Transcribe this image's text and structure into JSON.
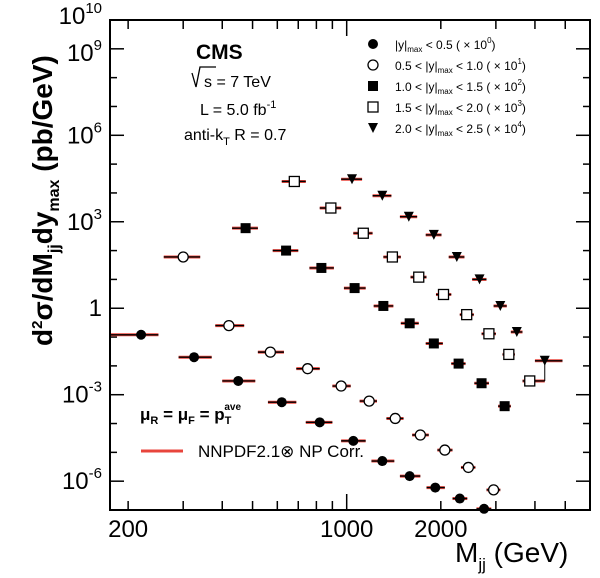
{
  "chart_data": {
    "type": "scatter",
    "title": "",
    "xlabel": "M_jj (GeV)",
    "ylabel": "d²σ/dM_jj dy_max (pb/GeV)",
    "xscale": "log",
    "yscale": "log",
    "xlim": [
      175,
      6000
    ],
    "ylim": [
      1e-07,
      10000000000.0
    ],
    "x_tick_labels": [
      {
        "value": 200,
        "label": "200"
      },
      {
        "value": 1000,
        "label": "1000"
      },
      {
        "value": 2000,
        "label": "2000"
      }
    ],
    "y_tick_labels": [
      {
        "value": 1e-06,
        "base": "10",
        "exp": "-6"
      },
      {
        "value": 0.001,
        "base": "10",
        "exp": "-3"
      },
      {
        "value": 1,
        "base": "1",
        "exp": ""
      },
      {
        "value": 1000.0,
        "base": "10",
        "exp": "3"
      },
      {
        "value": 1000000.0,
        "base": "10",
        "exp": "6"
      },
      {
        "value": 1000000000.0,
        "base": "10",
        "exp": "9"
      },
      {
        "value": 10000000000.0,
        "base": "10",
        "exp": "10"
      }
    ],
    "legend_placement": "top-right",
    "experiment_label": "CMS",
    "info_lines": {
      "energy_prefix": "s",
      "energy": " = 7 TeV",
      "lumi": "L = 5.0 fb",
      "lumi_exp": "-1",
      "algo_pre": "anti-k",
      "algo_sub": "T",
      "algo_post": " R = 0.7"
    },
    "theory_legend": {
      "label": "NNPDF2.1⊗ NP Corr.",
      "color": "#e8453c"
    },
    "scale_label": {
      "mu_r": "μ",
      "r_sub": "R",
      "eq1": " = ",
      "mu_f": "μ",
      "f_sub": "F",
      "eq2": " = p",
      "t_sub": "T",
      "t_sup": "ave"
    },
    "series": [
      {
        "marker": "filled-circle",
        "legend": {
          "pre": "|y|",
          "sub": "max",
          "post": " < 0.5 ( × 10",
          "exp": "0",
          "close": ")"
        },
        "points": [
          {
            "x": 220,
            "y": 0.12,
            "x_lo": 175,
            "x_hi": 250
          },
          {
            "x": 325,
            "y": 0.02,
            "x_lo": 290,
            "x_hi": 370
          },
          {
            "x": 450,
            "y": 0.003,
            "x_lo": 400,
            "x_hi": 510
          },
          {
            "x": 620,
            "y": 0.00055,
            "x_lo": 560,
            "x_hi": 690
          },
          {
            "x": 820,
            "y": 0.00011,
            "x_lo": 740,
            "x_hi": 900
          },
          {
            "x": 1050,
            "y": 2.5e-05,
            "x_lo": 960,
            "x_hi": 1150
          },
          {
            "x": 1300,
            "y": 5e-06,
            "x_lo": 1200,
            "x_hi": 1420
          },
          {
            "x": 1590,
            "y": 1.5e-06,
            "x_lo": 1480,
            "x_hi": 1720
          },
          {
            "x": 1920,
            "y": 6e-07,
            "x_lo": 1800,
            "x_hi": 2060
          },
          {
            "x": 2300,
            "y": 2.5e-07,
            "x_lo": 2180,
            "x_hi": 2430
          },
          {
            "x": 2750,
            "y": 1.1e-07,
            "x_lo": 2600,
            "x_hi": 2900
          }
        ]
      },
      {
        "marker": "open-circle",
        "legend": {
          "pre": "0.5 < |y|",
          "sub": "max",
          "post": " < 1.0 ( × 10",
          "exp": "1",
          "close": ")"
        },
        "points": [
          {
            "x": 300,
            "y": 60,
            "x_lo": 260,
            "x_hi": 340
          },
          {
            "x": 420,
            "y": 0.25,
            "x_lo": 380,
            "x_hi": 470
          },
          {
            "x": 570,
            "y": 0.03,
            "x_lo": 520,
            "x_hi": 630
          },
          {
            "x": 750,
            "y": 0.008,
            "x_lo": 690,
            "x_hi": 820
          },
          {
            "x": 960,
            "y": 0.002,
            "x_lo": 900,
            "x_hi": 1030
          },
          {
            "x": 1180,
            "y": 0.0006,
            "x_lo": 1100,
            "x_hi": 1250
          },
          {
            "x": 1430,
            "y": 0.00015,
            "x_lo": 1340,
            "x_hi": 1520
          },
          {
            "x": 1720,
            "y": 4e-05,
            "x_lo": 1620,
            "x_hi": 1830
          },
          {
            "x": 2060,
            "y": 1.2e-05,
            "x_lo": 1950,
            "x_hi": 2180
          },
          {
            "x": 2450,
            "y": 3e-06,
            "x_lo": 2320,
            "x_hi": 2580
          },
          {
            "x": 2950,
            "y": 5e-07,
            "x_lo": 2800,
            "x_hi": 3100
          }
        ]
      },
      {
        "marker": "filled-square",
        "legend": {
          "pre": "1.0 < |y|",
          "sub": "max",
          "post": " < 1.5 ( × 10",
          "exp": "2",
          "close": ")"
        },
        "points": [
          {
            "x": 475,
            "y": 600,
            "x_lo": 430,
            "x_hi": 520
          },
          {
            "x": 640,
            "y": 100,
            "x_lo": 580,
            "x_hi": 700
          },
          {
            "x": 830,
            "y": 25,
            "x_lo": 760,
            "x_hi": 910
          },
          {
            "x": 1060,
            "y": 5,
            "x_lo": 980,
            "x_hi": 1150
          },
          {
            "x": 1310,
            "y": 1.2,
            "x_lo": 1220,
            "x_hi": 1410
          },
          {
            "x": 1590,
            "y": 0.3,
            "x_lo": 1490,
            "x_hi": 1700
          },
          {
            "x": 1900,
            "y": 0.06,
            "x_lo": 1790,
            "x_hi": 2030
          },
          {
            "x": 2280,
            "y": 0.012,
            "x_lo": 2160,
            "x_hi": 2400
          },
          {
            "x": 2700,
            "y": 0.0025,
            "x_lo": 2560,
            "x_hi": 2850
          },
          {
            "x": 3200,
            "y": 0.0004,
            "x_lo": 3050,
            "x_hi": 3350
          }
        ]
      },
      {
        "marker": "open-square",
        "legend": {
          "pre": "1.5 < |y|",
          "sub": "max",
          "post": " < 2.0 ( × 10",
          "exp": "3",
          "close": ")"
        },
        "points": [
          {
            "x": 680,
            "y": 25000,
            "x_lo": 620,
            "x_hi": 740
          },
          {
            "x": 890,
            "y": 3000,
            "x_lo": 820,
            "x_hi": 960
          },
          {
            "x": 1130,
            "y": 400,
            "x_lo": 1050,
            "x_hi": 1210
          },
          {
            "x": 1400,
            "y": 60,
            "x_lo": 1310,
            "x_hi": 1490
          },
          {
            "x": 1700,
            "y": 12,
            "x_lo": 1600,
            "x_hi": 1800
          },
          {
            "x": 2040,
            "y": 3,
            "x_lo": 1930,
            "x_hi": 2160
          },
          {
            "x": 2420,
            "y": 0.6,
            "x_lo": 2300,
            "x_hi": 2550
          },
          {
            "x": 2850,
            "y": 0.13,
            "x_lo": 2700,
            "x_hi": 3000
          },
          {
            "x": 3300,
            "y": 0.025,
            "x_lo": 3150,
            "x_hi": 3450
          },
          {
            "x": 3850,
            "y": 0.003,
            "x_lo": 3650,
            "x_hi": 4300
          }
        ]
      },
      {
        "marker": "filled-triangle-down",
        "legend": {
          "pre": "2.0 < |y|",
          "sub": "max",
          "post": " < 2.5 ( × 10",
          "exp": "4",
          "close": ")"
        },
        "points": [
          {
            "x": 1040,
            "y": 30000,
            "x_lo": 960,
            "x_hi": 1120
          },
          {
            "x": 1300,
            "y": 8000,
            "x_lo": 1210,
            "x_hi": 1390
          },
          {
            "x": 1580,
            "y": 1500,
            "x_lo": 1480,
            "x_hi": 1680
          },
          {
            "x": 1900,
            "y": 350,
            "x_lo": 1790,
            "x_hi": 2010
          },
          {
            "x": 2250,
            "y": 60,
            "x_lo": 2120,
            "x_hi": 2380
          },
          {
            "x": 2660,
            "y": 10,
            "x_lo": 2520,
            "x_hi": 2800
          },
          {
            "x": 3100,
            "y": 1.2,
            "x_lo": 2950,
            "x_hi": 3250
          },
          {
            "x": 3500,
            "y": 0.15,
            "x_lo": 3350,
            "x_hi": 3650
          },
          {
            "x": 4300,
            "y": 0.015,
            "x_lo": 4000,
            "x_hi": 4900,
            "y_lo": 0.003,
            "y_hi": 0.02
          }
        ]
      }
    ]
  }
}
